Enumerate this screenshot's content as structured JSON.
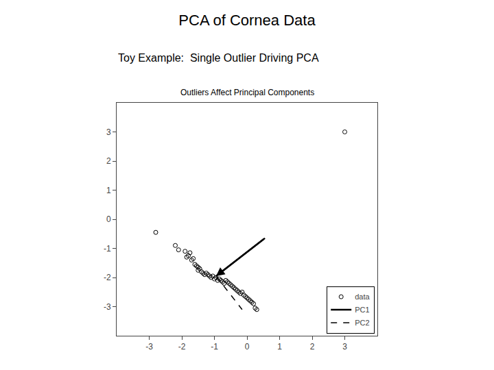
{
  "chart_data": {
    "type": "scatter",
    "title": "PCA of Cornea Data",
    "subtitle": "Toy Example:  Single Outlier Driving PCA",
    "annotations": [
      "Outliers Affect Principal Components"
    ],
    "xlim": [
      -4,
      4
    ],
    "ylim": [
      -4,
      4
    ],
    "xticks": [
      -3,
      -2,
      -1,
      0,
      1,
      2,
      3
    ],
    "yticks": [
      -3,
      -2,
      -1,
      0,
      1,
      2,
      3
    ],
    "grid": false,
    "legend": "lower right",
    "series": [
      {
        "name": "data",
        "type": "scatter",
        "marker": "circle-open",
        "color": "#000000",
        "x": [
          -2.8,
          -2.2,
          -2.1,
          -1.9,
          -1.85,
          -1.8,
          -1.75,
          -1.7,
          -1.65,
          -1.6,
          -1.55,
          -1.5,
          -1.5,
          -1.45,
          -1.4,
          -1.35,
          -1.3,
          -1.25,
          -1.2,
          -1.15,
          -1.1,
          -1.05,
          -1.0,
          -0.95,
          -0.9,
          -0.85,
          -0.8,
          -0.75,
          -0.7,
          -0.65,
          -0.6,
          -0.55,
          -0.5,
          -0.45,
          -0.4,
          -0.35,
          -0.3,
          -0.25,
          -0.2,
          -0.15,
          -0.1,
          -0.05,
          0.0,
          0.05,
          0.1,
          0.15,
          0.2,
          0.25,
          0.3,
          3.0
        ],
        "values": [
          -0.45,
          -0.9,
          -1.05,
          -1.1,
          -1.3,
          -1.25,
          -1.15,
          -1.4,
          -1.35,
          -1.55,
          -1.6,
          -1.65,
          -1.75,
          -1.7,
          -1.8,
          -1.85,
          -1.9,
          -1.85,
          -1.9,
          -1.95,
          -2.0,
          -1.95,
          -2.05,
          -2.0,
          -2.1,
          -2.05,
          -2.1,
          -2.15,
          -2.2,
          -2.1,
          -2.15,
          -2.2,
          -2.25,
          -2.3,
          -2.35,
          -2.4,
          -2.45,
          -2.5,
          -2.55,
          -2.5,
          -2.6,
          -2.65,
          -2.7,
          -2.75,
          -2.8,
          -2.85,
          -2.9,
          -3.05,
          -3.1,
          3.0
        ]
      },
      {
        "name": "PC1",
        "type": "line",
        "line_style": "solid",
        "marker": "arrow",
        "color": "#000000",
        "x": [
          0.55,
          -0.95
        ],
        "values": [
          -0.65,
          -1.95
        ]
      },
      {
        "name": "PC2",
        "type": "line",
        "line_style": "dashed",
        "color": "#000000",
        "x": [
          -0.95,
          -0.15
        ],
        "values": [
          -1.95,
          -3.1
        ]
      }
    ]
  }
}
